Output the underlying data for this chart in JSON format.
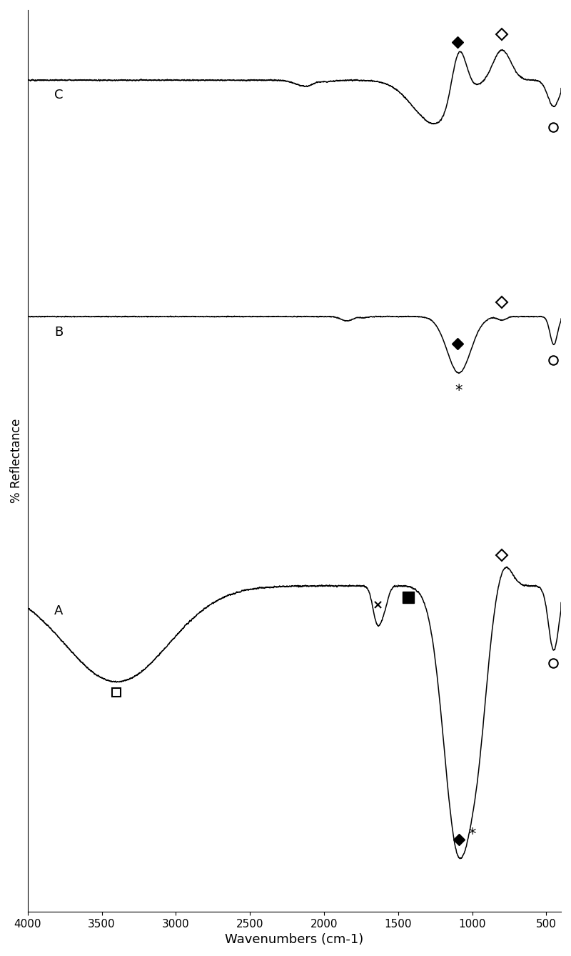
{
  "xlabel": "Wavenumbers (cm-1)",
  "ylabel": "% Reflectance",
  "background_color": "#ffffff",
  "xlim_left": 4000,
  "xlim_right": 400,
  "xticks": [
    4000,
    3500,
    3000,
    2500,
    2000,
    1500,
    1000,
    500
  ],
  "xtick_labels": [
    "4000",
    "3500",
    "3000",
    "2500",
    "2000",
    "1500",
    "1000",
    "500"
  ]
}
